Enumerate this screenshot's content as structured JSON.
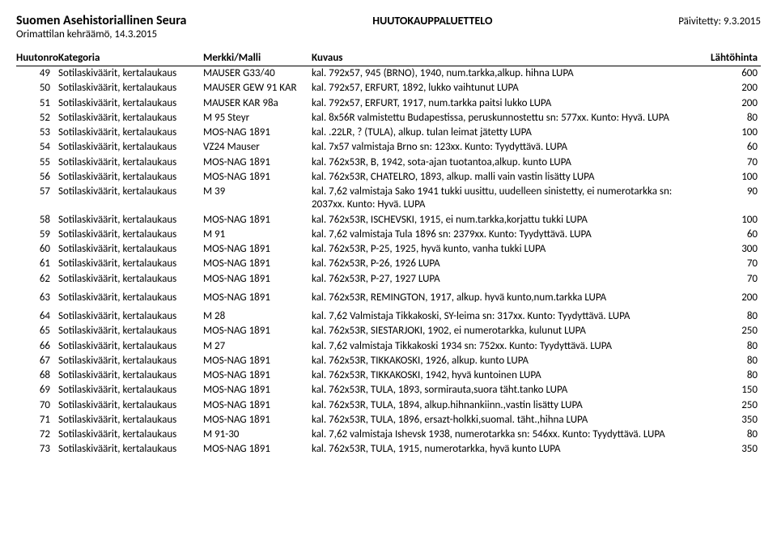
{
  "header": {
    "org": "Suomen Asehistoriallinen Seura",
    "title": "HUUTOKAUPPALUETTELO",
    "updated_label": "Päivitetty: 9.3.2015",
    "subheader": "Orimattilan kehräämö, 14.3.2015"
  },
  "columns": {
    "nro": "Huutonro",
    "kat": "Kategoria",
    "merkki": "Merkki/Malli",
    "kuvaus": "Kuvaus",
    "hinta": "Lähtöhinta"
  },
  "rows": [
    {
      "n": "49",
      "k": "Sotilaskiväärit, kertalaukaus",
      "m": "MAUSER G33/40",
      "d": "kal. 792x57, 945 (BRNO), 1940, num.tarkka,alkup. hihna LUPA",
      "p": "600"
    },
    {
      "n": "50",
      "k": "Sotilaskiväärit, kertalaukaus",
      "m": "MAUSER GEW 91 KAR",
      "d": "kal. 792x57, ERFURT, 1892, lukko vaihtunut LUPA",
      "p": "200"
    },
    {
      "n": "51",
      "k": "Sotilaskiväärit, kertalaukaus",
      "m": "MAUSER KAR 98a",
      "d": "kal. 792x57, ERFURT, 1917, num.tarkka paitsi lukko LUPA",
      "p": "200"
    },
    {
      "n": "52",
      "k": "Sotilaskiväärit, kertalaukaus",
      "m": "M 95 Steyr",
      "d": "kal. 8x56R valmistettu Budapestissa, peruskunnostettu sn: 577xx. Kunto: Hyvä. LUPA",
      "p": "80"
    },
    {
      "n": "53",
      "k": "Sotilaskiväärit, kertalaukaus",
      "m": "MOS-NAG 1891",
      "d": "kal. .22LR, ? (TULA), alkup. tulan leimat jätetty LUPA",
      "p": "100"
    },
    {
      "n": "54",
      "k": "Sotilaskiväärit, kertalaukaus",
      "m": "VZ24 Mauser",
      "d": "kal. 7x57 valmistaja Brno sn: 123xx. Kunto: Tyydyttävä. LUPA",
      "p": "60"
    },
    {
      "n": "55",
      "k": "Sotilaskiväärit, kertalaukaus",
      "m": "MOS-NAG 1891",
      "d": "kal. 762x53R, B, 1942, sota-ajan tuotantoa,alkup. kunto LUPA",
      "p": "70"
    },
    {
      "n": "56",
      "k": "Sotilaskiväärit, kertalaukaus",
      "m": "MOS-NAG 1891",
      "d": "kal. 762x53R, CHATELRO, 1893, alkup. malli vain vastin lisätty LUPA",
      "p": "100"
    },
    {
      "n": "57",
      "k": "Sotilaskiväärit, kertalaukaus",
      "m": "M 39",
      "d": "kal. 7,62 valmistaja Sako 1941 tukki uusittu, uudelleen sinistetty, ei numerotarkka sn: 2037xx. Kunto: Hyvä. LUPA",
      "p": "90"
    },
    {
      "n": "58",
      "k": "Sotilaskiväärit, kertalaukaus",
      "m": "MOS-NAG 1891",
      "d": "kal. 762x53R, ISCHEVSKI, 1915, ei num.tarkka,korjattu tukki LUPA",
      "p": "100"
    },
    {
      "n": "59",
      "k": "Sotilaskiväärit, kertalaukaus",
      "m": "M 91",
      "d": "kal. 7,62 valmistaja Tula 1896 sn: 2379xx. Kunto: Tyydyttävä. LUPA",
      "p": "60"
    },
    {
      "n": "60",
      "k": "Sotilaskiväärit, kertalaukaus",
      "m": "MOS-NAG 1891",
      "d": "kal. 762x53R, P-25, 1925, hyvä kunto, vanha tukki LUPA",
      "p": "300"
    },
    {
      "n": "61",
      "k": "Sotilaskiväärit, kertalaukaus",
      "m": "MOS-NAG 1891",
      "d": "kal. 762x53R, P-26, 1926 LUPA",
      "p": "70"
    },
    {
      "n": "62",
      "k": "Sotilaskiväärit, kertalaukaus",
      "m": "MOS-NAG 1891",
      "d": "kal. 762x53R, P-27, 1927 LUPA",
      "p": "70"
    },
    {
      "n": "63",
      "k": "Sotilaskiväärit, kertalaukaus",
      "m": "MOS-NAG 1891",
      "d": "kal. 762x53R, REMINGTON, 1917, alkup. hyvä kunto,num.tarkka LUPA",
      "p": "200",
      "spacer": true
    },
    {
      "n": "64",
      "k": "Sotilaskiväärit, kertalaukaus",
      "m": "M 28",
      "d": "kal. 7,62 Valmistaja Tikkakoski, SY-leima sn: 317xx. Kunto: Tyydyttävä. LUPA",
      "p": "80",
      "spacer": true
    },
    {
      "n": "65",
      "k": "Sotilaskiväärit, kertalaukaus",
      "m": "MOS-NAG 1891",
      "d": "kal. 762x53R, SIESTARJOKI, 1902, ei numerotarkka, kulunut LUPA",
      "p": "250"
    },
    {
      "n": "66",
      "k": "Sotilaskiväärit, kertalaukaus",
      "m": "M 27",
      "d": "kal. 7,62 valmistaja Tikkakoski 1934 sn: 752xx. Kunto: Tyydyttävä. LUPA",
      "p": "80"
    },
    {
      "n": "67",
      "k": "Sotilaskiväärit, kertalaukaus",
      "m": "MOS-NAG 1891",
      "d": "kal. 762x53R, TIKKAKOSKI, 1926, alkup. kunto LUPA",
      "p": "80"
    },
    {
      "n": "68",
      "k": "Sotilaskiväärit, kertalaukaus",
      "m": "MOS-NAG 1891",
      "d": "kal. 762x53R, TIKKAKOSKI, 1942, hyvä kuntoinen LUPA",
      "p": "80"
    },
    {
      "n": "69",
      "k": "Sotilaskiväärit, kertalaukaus",
      "m": "MOS-NAG 1891",
      "d": "kal. 762x53R, TULA, 1893, sormirauta,suora täht.tanko LUPA",
      "p": "150"
    },
    {
      "n": "70",
      "k": "Sotilaskiväärit, kertalaukaus",
      "m": "MOS-NAG 1891",
      "d": "kal. 762x53R, TULA, 1894, alkup.hihnankiinn.,vastin lisätty LUPA",
      "p": "250"
    },
    {
      "n": "71",
      "k": "Sotilaskiväärit, kertalaukaus",
      "m": "MOS-NAG 1891",
      "d": "kal. 762x53R, TULA, 1896, ersazt-holkki,suomal. täht.,hihna LUPA",
      "p": "350"
    },
    {
      "n": "72",
      "k": "Sotilaskiväärit, kertalaukaus",
      "m": "M 91-30",
      "d": "kal. 7,62 valmistaja Ishevsk 1938, numerotarkka sn: 546xx. Kunto: Tyydyttävä. LUPA",
      "p": "80"
    },
    {
      "n": "73",
      "k": "Sotilaskiväärit, kertalaukaus",
      "m": "MOS-NAG 1891",
      "d": "kal. 762x53R, TULA, 1915, numerotarkka, hyvä kunto LUPA",
      "p": "350"
    }
  ]
}
